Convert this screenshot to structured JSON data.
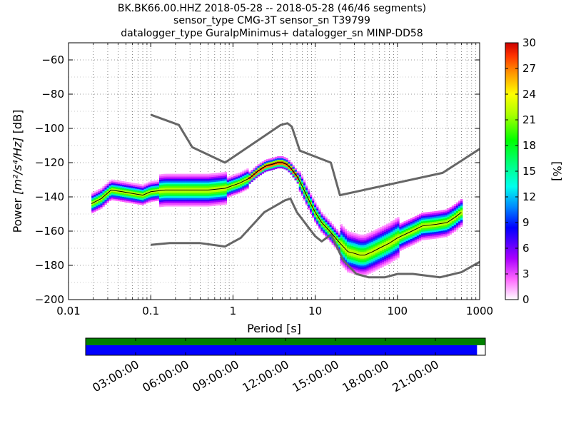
{
  "title": {
    "line1": "BK.BK66.00.HHZ   2018-05-28 -- 2018-05-28  (46/46 segments)",
    "line2": "sensor_type CMG-3T sensor_sn T39799",
    "line3": "datalogger_type GuralpMinimus+ datalogger_sn MINP-DD58"
  },
  "chart_data": {
    "type": "heatmap",
    "xlabel": "Period [s]",
    "ylabel_prefix": "Power ",
    "ylabel_suffix": " [dB]",
    "ylabel_math": "[m²/s⁴/Hz]",
    "xscale": "log",
    "xlim": [
      0.01,
      1000
    ],
    "ylim": [
      -200,
      -50
    ],
    "x_ticks": [
      {
        "value": 0.01,
        "label": "0.01"
      },
      {
        "value": 0.1,
        "label": "0.1"
      },
      {
        "value": 1,
        "label": "1"
      },
      {
        "value": 10,
        "label": "10"
      },
      {
        "value": 100,
        "label": "100"
      },
      {
        "value": 1000,
        "label": "1000"
      }
    ],
    "y_ticks": [
      {
        "value": -60,
        "label": "−60"
      },
      {
        "value": -80,
        "label": "−80"
      },
      {
        "value": -100,
        "label": "−100"
      },
      {
        "value": -120,
        "label": "−120"
      },
      {
        "value": -140,
        "label": "−140"
      },
      {
        "value": -160,
        "label": "−160"
      },
      {
        "value": -180,
        "label": "−180"
      },
      {
        "value": -200,
        "label": "−200"
      }
    ],
    "grid": true,
    "mean_curve": {
      "x": [
        0.019,
        0.025,
        0.033,
        0.045,
        0.06,
        0.08,
        0.1,
        0.15,
        0.2,
        0.3,
        0.5,
        0.8,
        1.2,
        1.6,
        2,
        2.5,
        3,
        3.5,
        4,
        4.5,
        5,
        6,
        7,
        8,
        10,
        12,
        15,
        20,
        25,
        30,
        35,
        40,
        50,
        60,
        80,
        100,
        150,
        200,
        300,
        400,
        500,
        600
      ],
      "y": [
        -144,
        -141,
        -136,
        -137,
        -138,
        -139,
        -137,
        -136,
        -136,
        -136,
        -136,
        -135,
        -132,
        -129,
        -125,
        -122,
        -121,
        -120,
        -120,
        -121,
        -123,
        -128,
        -134,
        -140,
        -149,
        -155,
        -160,
        -167,
        -172,
        -173,
        -174,
        -174,
        -172,
        -170,
        -167,
        -164,
        -160,
        -157,
        -156,
        -155,
        -152,
        -149
      ]
    },
    "high_noise_model": {
      "x": [
        0.1,
        0.22,
        0.32,
        0.8,
        3.8,
        4.6,
        5.2,
        6.5,
        15.5,
        20,
        354,
        1000
      ],
      "y": [
        -92,
        -98,
        -111,
        -120,
        -98,
        -97,
        -99,
        -113,
        -120,
        -139,
        -126,
        -112
      ]
    },
    "low_noise_model": {
      "x": [
        0.1,
        0.17,
        0.4,
        0.8,
        1.24,
        2.4,
        4.3,
        5.0,
        6.0,
        10,
        12,
        15.6,
        21.9,
        31.6,
        45,
        70,
        101,
        154,
        328,
        600,
        1000
      ],
      "y": [
        -168,
        -167,
        -167,
        -169,
        -164,
        -149,
        -142,
        -141,
        -149,
        -163,
        -166,
        -162,
        -177,
        -185,
        -187,
        -187,
        -185,
        -185,
        -187,
        -184,
        -178
      ]
    },
    "colorbar": {
      "label": "[%]",
      "min": 0,
      "max": 30,
      "ticks": [
        "0",
        "3",
        "6",
        "9",
        "12",
        "15",
        "18",
        "21",
        "24",
        "27",
        "30"
      ]
    }
  },
  "time_coverage": {
    "tick_labels": [
      "03:00:00",
      "06:00:00",
      "09:00:00",
      "12:00:00",
      "15:00:00",
      "18:00:00",
      "21:00:00"
    ],
    "tick_hours": [
      3,
      6,
      9,
      12,
      15,
      18,
      21
    ],
    "range_hours": [
      0,
      24
    ],
    "data_coverage_end_hours": 23.5,
    "segments_used_end_hours": 24,
    "data_color": "#0000ff",
    "segments_color": "#008000"
  }
}
